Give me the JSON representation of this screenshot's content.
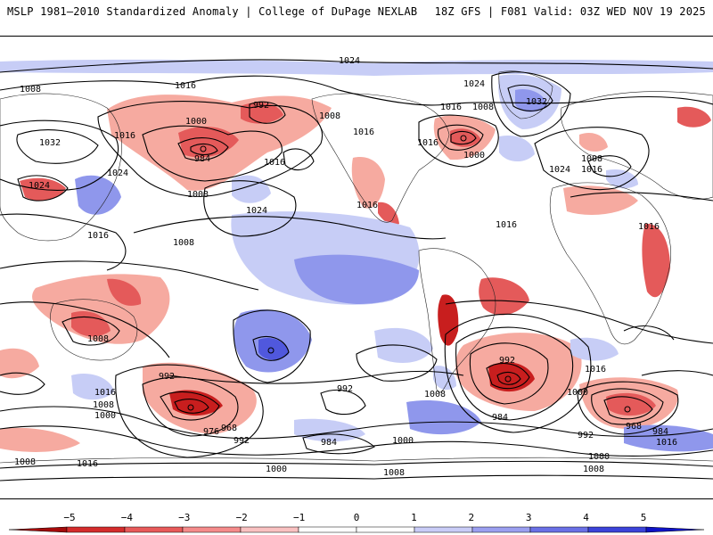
{
  "header": {
    "left_title": "MSLP 1981–2010 Standardized Anomaly | College of DuPage NEXLAB",
    "right_title": "18Z GFS | F081 Valid: 03Z WED NOV 19 2025"
  },
  "isobar_labels": [
    {
      "text": "1024"
    },
    {
      "text": "1008"
    },
    {
      "text": "1016"
    },
    {
      "text": "992"
    },
    {
      "text": "1000"
    },
    {
      "text": "1032"
    },
    {
      "text": "1024"
    },
    {
      "text": "984"
    },
    {
      "text": "1008"
    },
    {
      "text": "1016"
    },
    {
      "text": "1024"
    },
    {
      "text": "1008"
    },
    {
      "text": "1016"
    },
    {
      "text": "1016"
    },
    {
      "text": "1000"
    },
    {
      "text": "1024"
    },
    {
      "text": "1032"
    },
    {
      "text": "1008"
    },
    {
      "text": "1024"
    },
    {
      "text": "1016"
    },
    {
      "text": "1016"
    },
    {
      "text": "1008"
    },
    {
      "text": "1016"
    },
    {
      "text": "1008"
    },
    {
      "text": "1016"
    },
    {
      "text": "1016"
    },
    {
      "text": "1024"
    },
    {
      "text": "1016"
    },
    {
      "text": "1016"
    },
    {
      "text": "1008"
    },
    {
      "text": "1000"
    },
    {
      "text": "992"
    },
    {
      "text": "976"
    },
    {
      "text": "968"
    },
    {
      "text": "992"
    },
    {
      "text": "1016"
    },
    {
      "text": "1008"
    },
    {
      "text": "992"
    },
    {
      "text": "984"
    },
    {
      "text": "1000"
    },
    {
      "text": "1008"
    },
    {
      "text": "992"
    },
    {
      "text": "984"
    },
    {
      "text": "1016"
    },
    {
      "text": "1000"
    },
    {
      "text": "968"
    },
    {
      "text": "984"
    },
    {
      "text": "992"
    },
    {
      "text": "1016"
    },
    {
      "text": "1000"
    },
    {
      "text": "1008"
    },
    {
      "text": "1000"
    },
    {
      "text": "1008"
    },
    {
      "text": "1016"
    },
    {
      "text": "1008"
    }
  ],
  "colorbar": {
    "ticks": [
      "−5",
      "−4",
      "−3",
      "−2",
      "−1",
      "0",
      "1",
      "2",
      "3",
      "4",
      "5"
    ],
    "colors": [
      "#a50a0a",
      "#d42c2c",
      "#e85a5a",
      "#f58b8b",
      "#f9c1c1",
      "#ffffff",
      "#ffffff",
      "#c9ccf7",
      "#9b9ff0",
      "#6a70e6",
      "#3c43d9",
      "#0f12c7"
    ]
  },
  "colors": {
    "neg_strong": "#c81e1e",
    "neg_mid": "#e45a5a",
    "neg_light": "#f6aaa0",
    "pos_light": "#c7cdf6",
    "pos_mid": "#8f97ec",
    "pos_strong": "#5058dd"
  }
}
